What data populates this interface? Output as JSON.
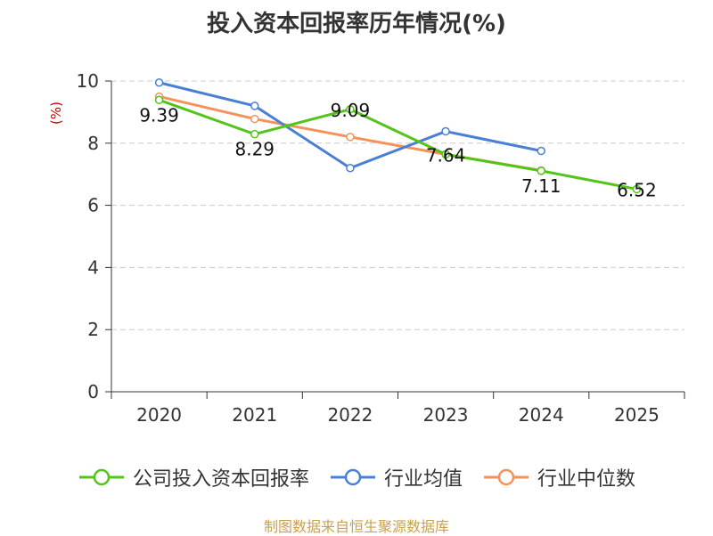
{
  "chart_data": {
    "type": "line",
    "title": "投入资本回报率历年情况(%)",
    "ylabel": "(%)",
    "xlabel": "",
    "categories": [
      "2020",
      "2021",
      "2022",
      "2023",
      "2024",
      "2025"
    ],
    "ylim": [
      0,
      10
    ],
    "yticks": [
      0,
      2,
      4,
      6,
      8,
      10
    ],
    "grid": true,
    "legend_position": "bottom",
    "series": [
      {
        "name": "公司投入资本回报率",
        "color": "#52c41a",
        "values": [
          9.39,
          8.29,
          9.09,
          7.64,
          7.11,
          6.52
        ],
        "labels": [
          "9.39",
          "8.29",
          "9.09",
          "7.64",
          "7.11",
          "6.52"
        ]
      },
      {
        "name": "行业均值",
        "color": "#4a7fd6",
        "values": [
          9.95,
          9.2,
          7.2,
          8.38,
          7.75,
          null
        ]
      },
      {
        "name": "行业中位数",
        "color": "#f5915a",
        "values": [
          9.5,
          8.78,
          8.2,
          7.64,
          7.12,
          null
        ]
      }
    ]
  },
  "footer": {
    "source": "制图数据来自恒生聚源数据库"
  }
}
